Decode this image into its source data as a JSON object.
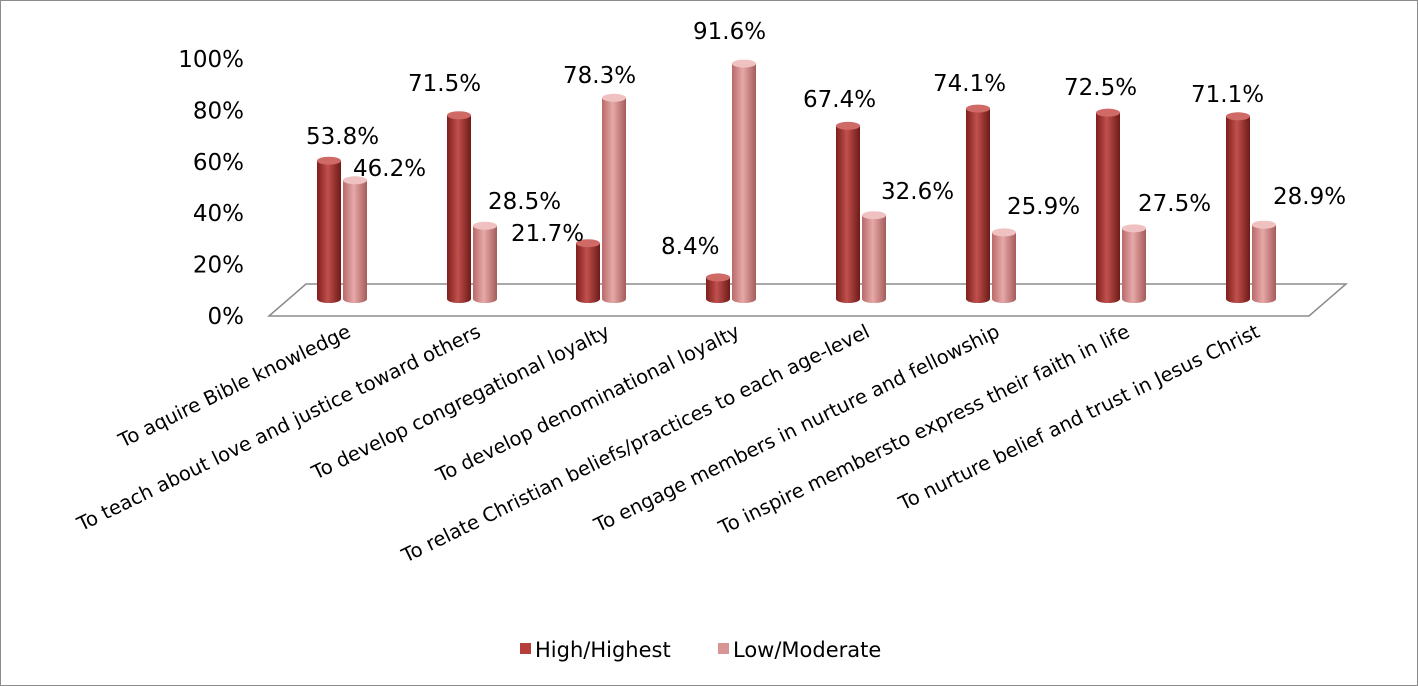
{
  "chart_data": {
    "type": "bar",
    "style": "3d-cylinder",
    "categories": [
      "To aquire Bible knowledge",
      "To teach about love and justice toward others",
      "To develop congregational loyalty",
      "To develop denominational loyalty",
      "To relate Christian beliefs/practices to each age-level",
      "To engage members in nurture and fellowship",
      "To inspire membersto express their faith in life",
      "To nurture belief and trust in Jesus Christ"
    ],
    "series": [
      {
        "name": "High/Highest",
        "color": "#b73f3b",
        "values": [
          53.8,
          71.5,
          21.7,
          8.4,
          67.4,
          74.1,
          72.5,
          71.1
        ],
        "labels": [
          "53.8%",
          "71.5%",
          "21.7%",
          "8.4%",
          "67.4%",
          "74.1%",
          "72.5%",
          "71.1%"
        ]
      },
      {
        "name": "Low/Moderate",
        "color": "#d99594",
        "values": [
          46.2,
          28.5,
          78.3,
          91.6,
          32.6,
          25.9,
          27.5,
          28.9
        ],
        "labels": [
          "46.2%",
          "28.5%",
          "78.3%",
          "91.6%",
          "32.6%",
          "25.9%",
          "27.5%",
          "28.9%"
        ]
      }
    ],
    "y_ticks": [
      "0%",
      "20%",
      "40%",
      "60%",
      "80%",
      "100%"
    ],
    "ylim": [
      0,
      100
    ],
    "title": "",
    "xlabel": "",
    "ylabel": "",
    "grid": false,
    "legend_position": "bottom"
  }
}
